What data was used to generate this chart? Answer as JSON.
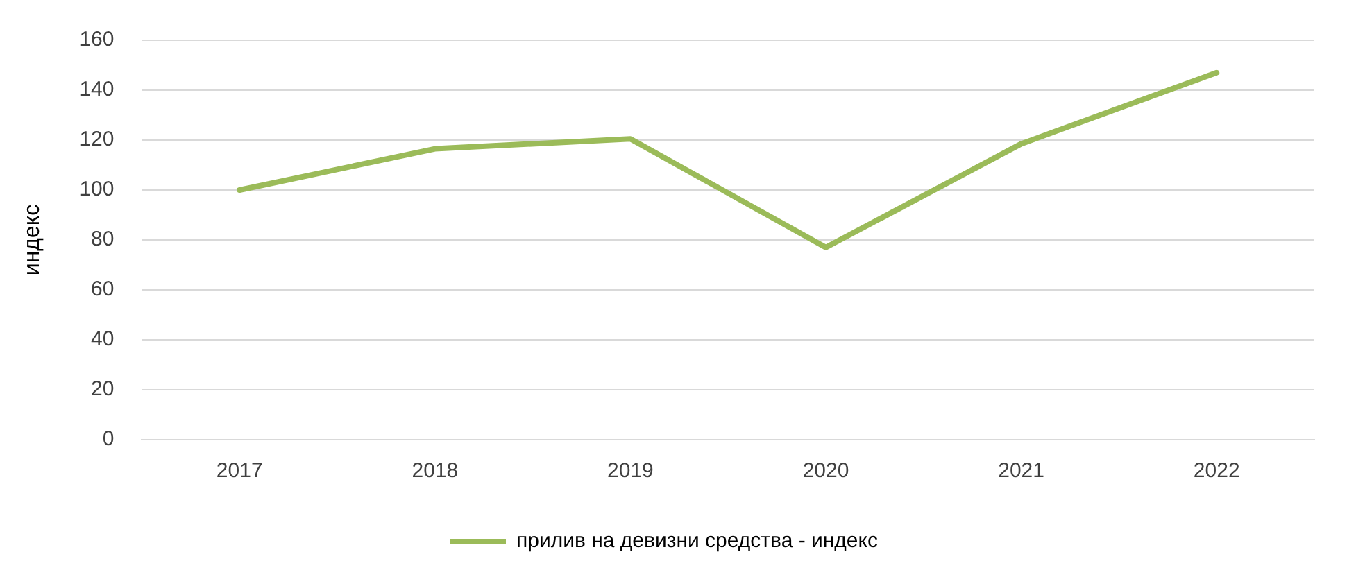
{
  "chart_data": {
    "type": "line",
    "ylabel": "индекс",
    "categories": [
      "2017",
      "2018",
      "2019",
      "2020",
      "2021",
      "2022"
    ],
    "series": [
      {
        "name": "прилив на девизни средства - индекс",
        "color": "#9bbb59",
        "values": [
          100,
          116.5,
          120.5,
          77,
          118.5,
          147
        ]
      }
    ],
    "ylim": [
      0,
      160
    ],
    "yticks": [
      0,
      20,
      40,
      60,
      80,
      100,
      120,
      140,
      160
    ],
    "grid": "y",
    "legend": "bottom",
    "marker": "none",
    "line_style": "solid"
  }
}
